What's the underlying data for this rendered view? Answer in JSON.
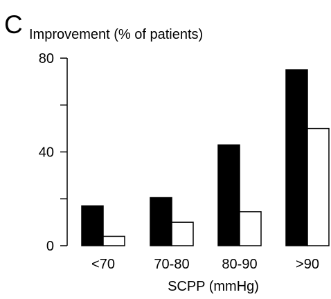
{
  "panel_label": "C",
  "chart_data": {
    "type": "bar",
    "title": "Improvement (% of patients)",
    "xlabel": "SCPP (mmHg)",
    "ylabel": "",
    "categories": [
      "<70",
      "70-80",
      "80-90",
      ">90"
    ],
    "ylim": [
      0,
      80
    ],
    "yticks": [
      0,
      40,
      80
    ],
    "grid": false,
    "series": [
      {
        "values": [
          17,
          20.5,
          43,
          75
        ],
        "color": "#000000"
      },
      {
        "values": [
          4,
          10,
          14.5,
          50
        ],
        "color": "#ffffff"
      }
    ]
  }
}
